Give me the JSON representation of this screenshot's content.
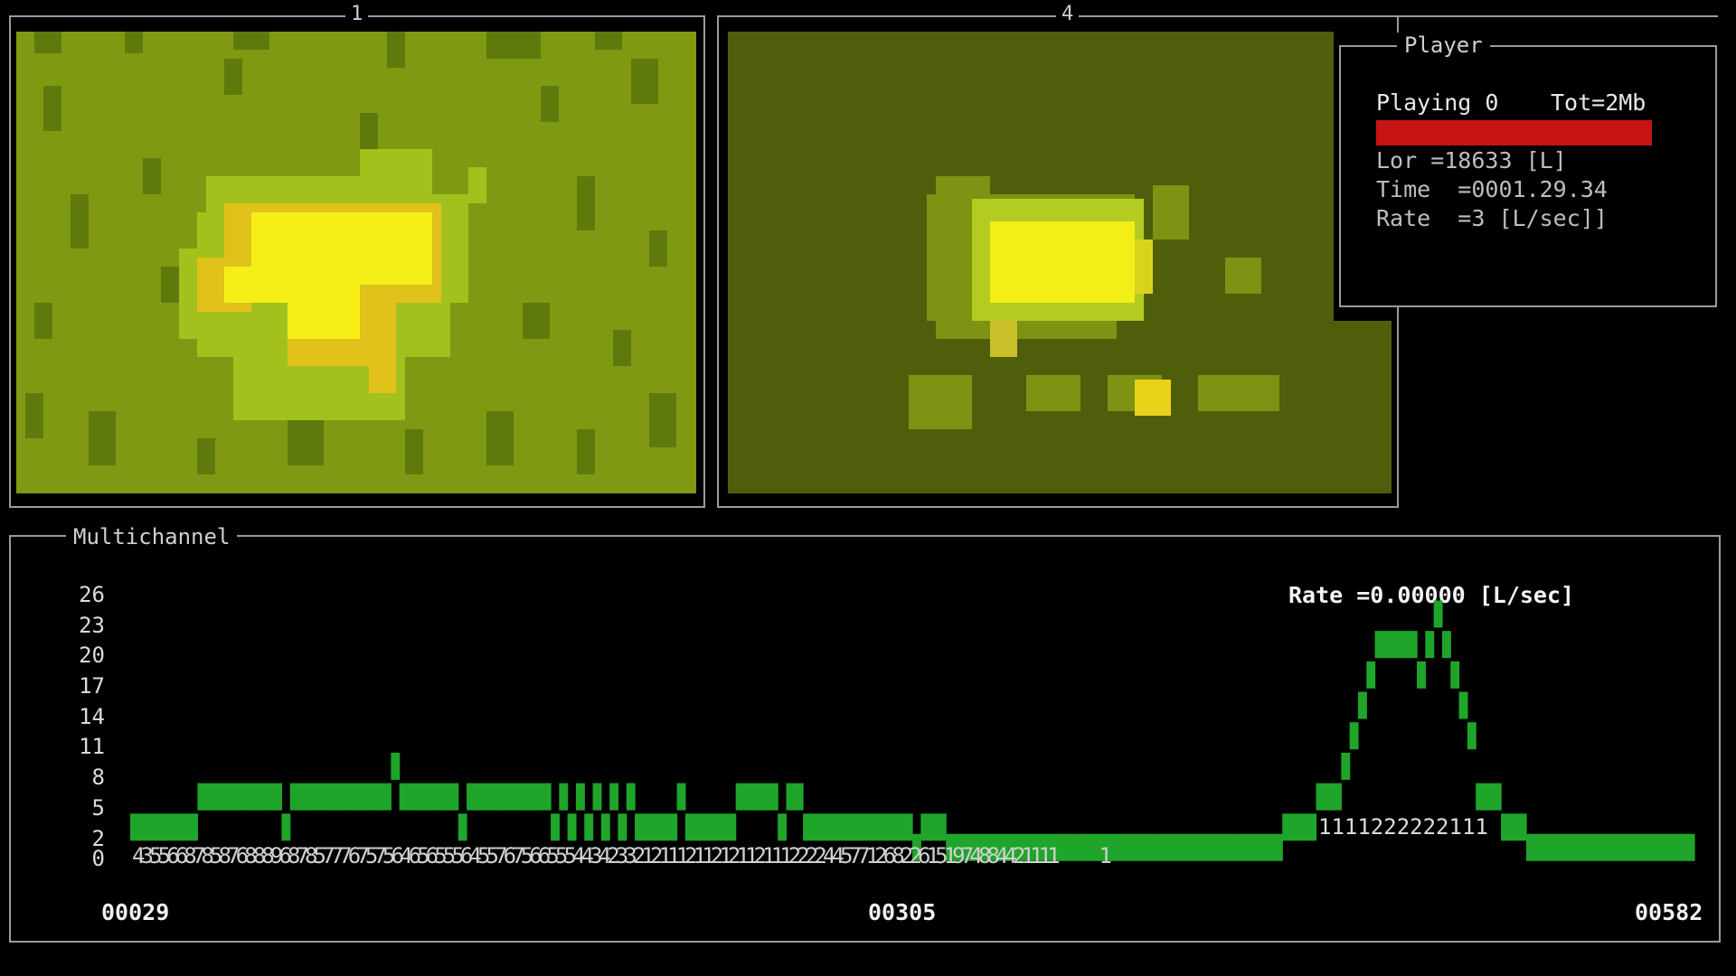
{
  "camera_panels": [
    {
      "title": "1"
    },
    {
      "title": "4"
    }
  ],
  "player": {
    "title": "Player",
    "status": "Playing 0",
    "total": "Tot=2Mb",
    "lor": "Lor =18633 [L]",
    "time": "Time  =0001.29.34",
    "rate": "Rate  =3 [L/sec]]",
    "progress": 1.0,
    "progress_color": "#c81414"
  },
  "multichannel": {
    "title": "Multichannel",
    "rate_label": "Rate =0.00000 [L/sec]",
    "counts_row": "43556687858768889687857776757564656555645576756655544342332121112112121121112222445771268226151974884421111     1",
    "peak_row": "1111222222111",
    "bar_color": "#1fa52a",
    "chart_data": {
      "type": "bar",
      "yticks": [
        26,
        23,
        20,
        17,
        14,
        11,
        8,
        5,
        2,
        0
      ],
      "ylim": [
        0,
        26
      ],
      "xticks": [
        "00029",
        "00305",
        "00582"
      ],
      "xlim": [
        29,
        582
      ],
      "values": [
        3,
        3,
        3,
        3,
        3,
        3,
        3,
        3,
        6,
        6,
        6,
        6,
        6,
        6,
        6,
        6,
        6,
        6,
        3,
        6,
        6,
        6,
        6,
        6,
        6,
        6,
        6,
        6,
        6,
        6,
        6,
        9,
        6,
        6,
        6,
        6,
        6,
        6,
        6,
        3,
        6,
        6,
        6,
        6,
        6,
        6,
        6,
        6,
        6,
        6,
        3,
        6,
        3,
        6,
        3,
        6,
        3,
        6,
        3,
        6,
        3,
        3,
        3,
        3,
        3,
        6,
        3,
        3,
        3,
        3,
        3,
        3,
        6,
        6,
        6,
        6,
        6,
        3,
        6,
        6,
        3,
        3,
        3,
        3,
        3,
        3,
        3,
        3,
        3,
        3,
        3,
        3,
        3,
        1,
        3,
        3,
        3,
        1,
        1,
        1,
        1,
        1,
        1,
        1,
        1,
        1,
        1,
        1,
        1,
        1,
        1,
        1,
        1,
        1,
        1,
        1,
        1,
        1,
        1,
        1,
        1,
        1,
        1,
        1,
        1,
        1,
        1,
        1,
        1,
        1,
        1,
        1,
        1,
        1,
        1,
        1,
        1,
        3,
        3,
        3,
        3,
        6,
        6,
        6,
        9,
        12,
        15,
        18,
        21,
        21,
        21,
        21,
        21,
        18,
        21,
        24,
        21,
        18,
        15,
        12,
        6,
        6,
        6,
        3,
        3,
        3,
        1,
        1,
        1,
        1,
        1,
        1,
        1,
        1,
        1,
        1,
        1,
        1,
        1,
        1,
        1,
        1,
        1,
        1,
        1,
        1
      ]
    }
  }
}
